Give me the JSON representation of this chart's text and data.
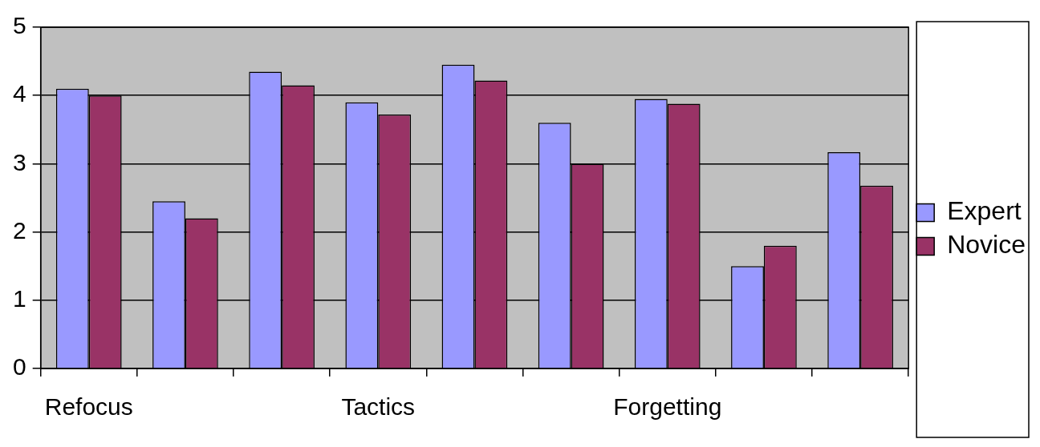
{
  "chart_data": {
    "type": "bar",
    "categories": [
      "Refocus",
      null,
      null,
      "Tactics",
      null,
      null,
      "Forgetting",
      null,
      null
    ],
    "series": [
      {
        "name": "Expert",
        "color": "#9999ff",
        "values": [
          4.1,
          2.45,
          4.35,
          3.9,
          4.45,
          3.6,
          3.95,
          1.5,
          3.17
        ]
      },
      {
        "name": "Novice",
        "color": "#993366",
        "values": [
          4.0,
          2.2,
          4.15,
          3.72,
          4.22,
          3.0,
          3.88,
          1.8,
          2.68
        ]
      }
    ],
    "ylim": [
      0,
      5
    ],
    "yticks": [
      0,
      1,
      2,
      3,
      4,
      5
    ],
    "grid": "y",
    "legend": "right"
  }
}
